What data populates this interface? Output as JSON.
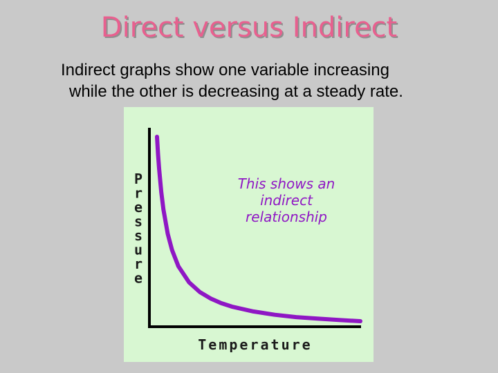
{
  "slide": {
    "title": "Direct versus Indirect",
    "body_line1": "Indirect graphs show one variable increasing",
    "body_line2": "while the other is decreasing at a steady rate."
  },
  "chart_data": {
    "type": "line",
    "title": "",
    "xlabel": "Temperature",
    "ylabel": "Pressure",
    "annotation": [
      "This shows an",
      "indirect",
      "relationship"
    ],
    "grid": false,
    "line_color": "#8f17c4",
    "series": [
      {
        "x": [
          0.5,
          0.55,
          0.6,
          0.7,
          0.8,
          1.0,
          1.2,
          1.5,
          2.0,
          2.5,
          3.0,
          3.5,
          4.0,
          5.0,
          6.0,
          7.0,
          8.0,
          9.0,
          10.0
        ],
        "y": [
          10.0,
          9.09,
          8.33,
          7.14,
          6.25,
          5.0,
          4.17,
          3.33,
          2.5,
          2.0,
          1.67,
          1.43,
          1.25,
          1.0,
          0.83,
          0.71,
          0.63,
          0.56,
          0.5
        ]
      }
    ]
  }
}
